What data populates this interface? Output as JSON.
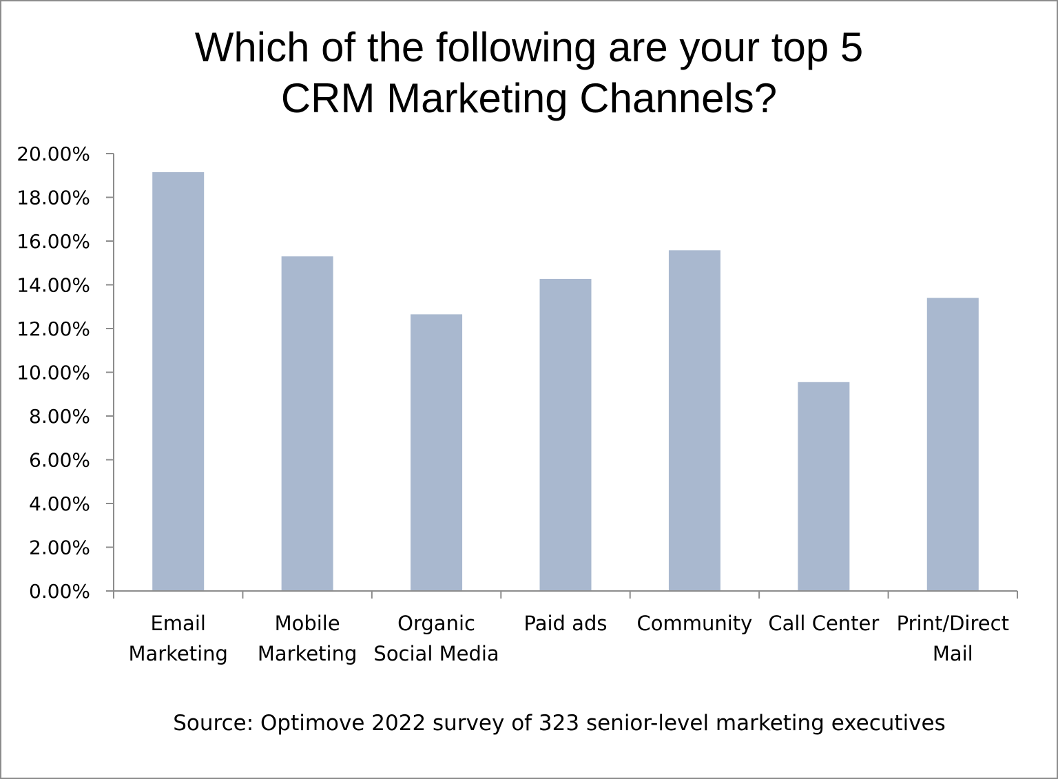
{
  "chart_data": {
    "type": "bar",
    "title": "Which of the following are your top 5 CRM Marketing Channels?",
    "title_lines": [
      "Which of the following are your top 5",
      "CRM Marketing Channels?"
    ],
    "categories": [
      [
        "Email",
        "Marketing"
      ],
      [
        "Mobile",
        "Marketing"
      ],
      [
        "Organic",
        "Social Media"
      ],
      [
        "Paid ads"
      ],
      [
        "Community"
      ],
      [
        "Call Center"
      ],
      [
        "Print/Direct",
        "Mail"
      ]
    ],
    "values": [
      19.15,
      15.3,
      12.65,
      14.27,
      15.58,
      9.55,
      13.4
    ],
    "ylim": [
      0,
      20
    ],
    "yticks": [
      "0.00%",
      "2.00%",
      "4.00%",
      "6.00%",
      "8.00%",
      "10.00%",
      "12.00%",
      "14.00%",
      "16.00%",
      "18.00%",
      "20.00%"
    ],
    "xlabel": "",
    "ylabel": "",
    "grid": false,
    "bar_color": "#a9b8cf",
    "source": "Source: Optimove 2022 survey of 323 senior-level marketing executives"
  }
}
